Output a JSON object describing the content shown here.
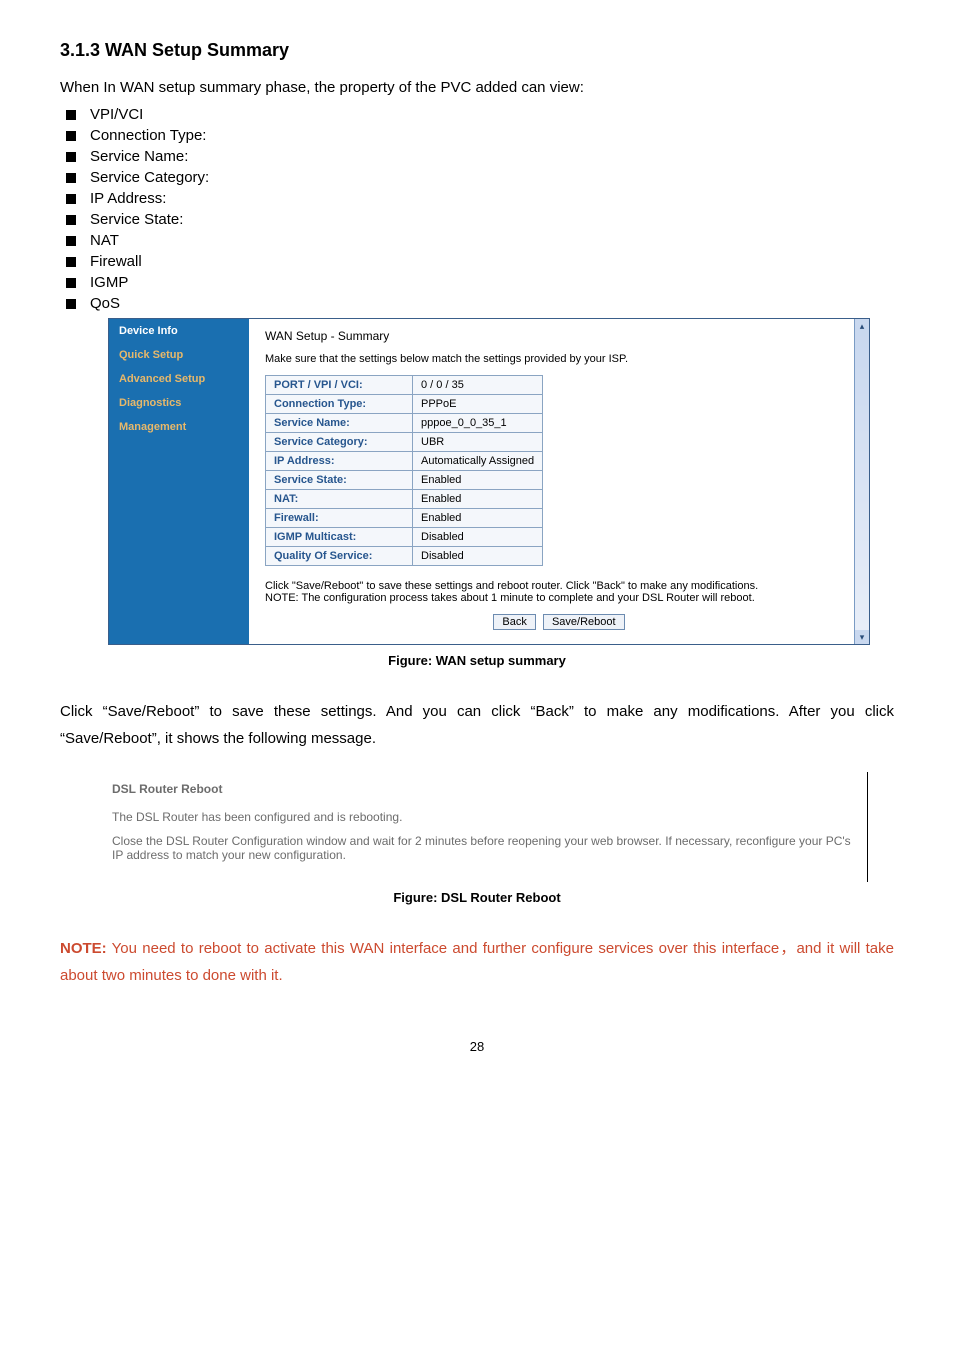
{
  "heading": "3.1.3 WAN Setup Summary",
  "intro": "When In WAN setup summary phase, the property of the PVC added can view:",
  "bullets": [
    "VPI/VCI",
    "Connection Type:",
    "Service Name:",
    "Service Category:",
    "IP Address:",
    "Service State:",
    "NAT",
    "Firewall",
    "IGMP",
    "QoS"
  ],
  "sidebar": {
    "items": [
      "Device Info",
      "Quick Setup",
      "Advanced Setup",
      "Diagnostics",
      "Management"
    ],
    "active_idx": 1
  },
  "wan": {
    "title": "WAN Setup - Summary",
    "subtitle": "Make sure that the settings below match the settings provided by your ISP.",
    "rows": [
      {
        "k": "PORT / VPI / VCI:",
        "v": "0 / 0 / 35"
      },
      {
        "k": "Connection Type:",
        "v": "PPPoE"
      },
      {
        "k": "Service Name:",
        "v": "pppoe_0_0_35_1"
      },
      {
        "k": "Service Category:",
        "v": "UBR"
      },
      {
        "k": "IP Address:",
        "v": "Automatically Assigned"
      },
      {
        "k": "Service State:",
        "v": "Enabled"
      },
      {
        "k": "NAT:",
        "v": "Enabled"
      },
      {
        "k": "Firewall:",
        "v": "Enabled"
      },
      {
        "k": "IGMP Multicast:",
        "v": "Disabled"
      },
      {
        "k": "Quality Of Service:",
        "v": "Disabled"
      }
    ],
    "note1": "Click \"Save/Reboot\" to save these settings and reboot router. Click \"Back\" to make any modifications.",
    "note2": "NOTE: The configuration process takes about 1 minute to complete and your DSL Router will reboot.",
    "btn_back": "Back",
    "btn_save": "Save/Reboot",
    "caption": "Figure: WAN setup summary"
  },
  "para1": "Click “Save/Reboot” to save these settings. And you can click “Back” to make any modifications. After you click “Save/Reboot”, it shows the following message.",
  "reboot": {
    "title": "DSL Router Reboot",
    "line1": "The DSL Router has been configured and is rebooting.",
    "line2": "Close the DSL Router Configuration window and wait for 2 minutes before reopening your web browser. If necessary, reconfigure your PC's IP address to match your new configuration.",
    "caption": "Figure: DSL Router Reboot"
  },
  "note_red_label": "NOTE:",
  "note_red": " You need to reboot to activate this WAN interface and further configure services over this interface，and it will take about two minutes to done with it.",
  "pagenum": "28",
  "colors": {
    "sidebar_bg": "#1a6fb0",
    "sidebar_fg": "#ffffff",
    "sidebar_accent": "#e7b86a",
    "table_border": "#8aa4c2",
    "cell_bg": "#f4f7fb",
    "key_color": "#27568e",
    "note_red": "#cc4a2f"
  }
}
